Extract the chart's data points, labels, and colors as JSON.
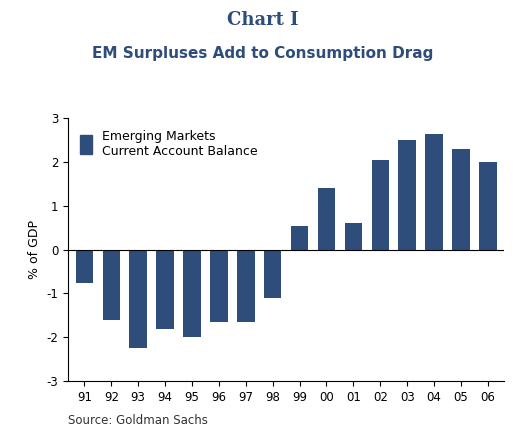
{
  "years": [
    "91",
    "92",
    "93",
    "94",
    "95",
    "96",
    "97",
    "98",
    "99",
    "00",
    "01",
    "02",
    "03",
    "04",
    "05",
    "06"
  ],
  "values": [
    -0.75,
    -1.6,
    -2.25,
    -1.8,
    -2.0,
    -1.65,
    -1.65,
    -1.1,
    0.55,
    1.4,
    0.6,
    2.05,
    2.5,
    2.65,
    2.3,
    2.0
  ],
  "bar_color": "#2E4D7B",
  "title_main": "Chart I",
  "title_sub": "EM Surpluses Add to Consumption Drag",
  "ylabel": "% of GDP",
  "ylim": [
    -3,
    3
  ],
  "yticks": [
    -3,
    -2,
    -1,
    0,
    1,
    2,
    3
  ],
  "legend_line1": "Emerging Markets",
  "legend_line2": "Current Account Balance",
  "source": "Source: Goldman Sachs",
  "title_color": "#2E4D7B",
  "background_color": "#FFFFFF"
}
